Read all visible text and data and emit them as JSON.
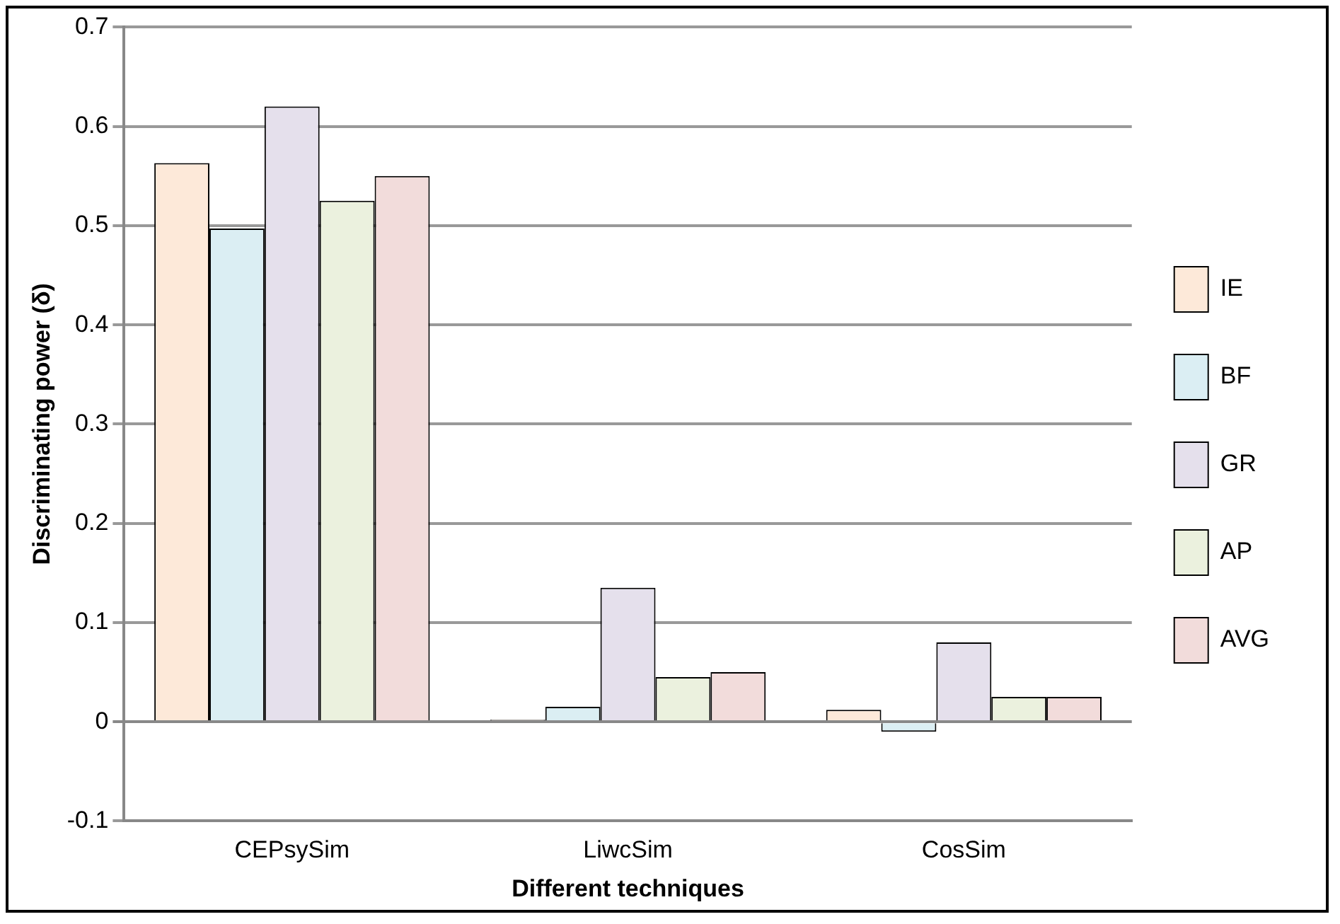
{
  "chart_data": {
    "type": "bar",
    "xlabel": "Different techniques",
    "ylabel": "Discriminating power (δ)",
    "categories": [
      "CEPsySim",
      "LiwcSim",
      "CosSim"
    ],
    "series": [
      {
        "name": "IE",
        "color": "#fde9d9",
        "values": [
          0.563,
          0.002,
          0.012
        ]
      },
      {
        "name": "BF",
        "color": "#dbeef3",
        "values": [
          0.497,
          0.015,
          -0.01
        ]
      },
      {
        "name": "GR",
        "color": "#e5e0ec",
        "values": [
          0.62,
          0.135,
          0.08
        ]
      },
      {
        "name": "AP",
        "color": "#ebf1de",
        "values": [
          0.525,
          0.045,
          0.025
        ]
      },
      {
        "name": "AVG",
        "color": "#f2dcdb",
        "values": [
          0.55,
          0.05,
          0.025
        ]
      }
    ],
    "ylim": [
      -0.1,
      0.7
    ],
    "yticks": [
      -0.1,
      0,
      0.1,
      0.2,
      0.3,
      0.4,
      0.5,
      0.6,
      0.7
    ],
    "grid": "y",
    "legend": "right"
  }
}
